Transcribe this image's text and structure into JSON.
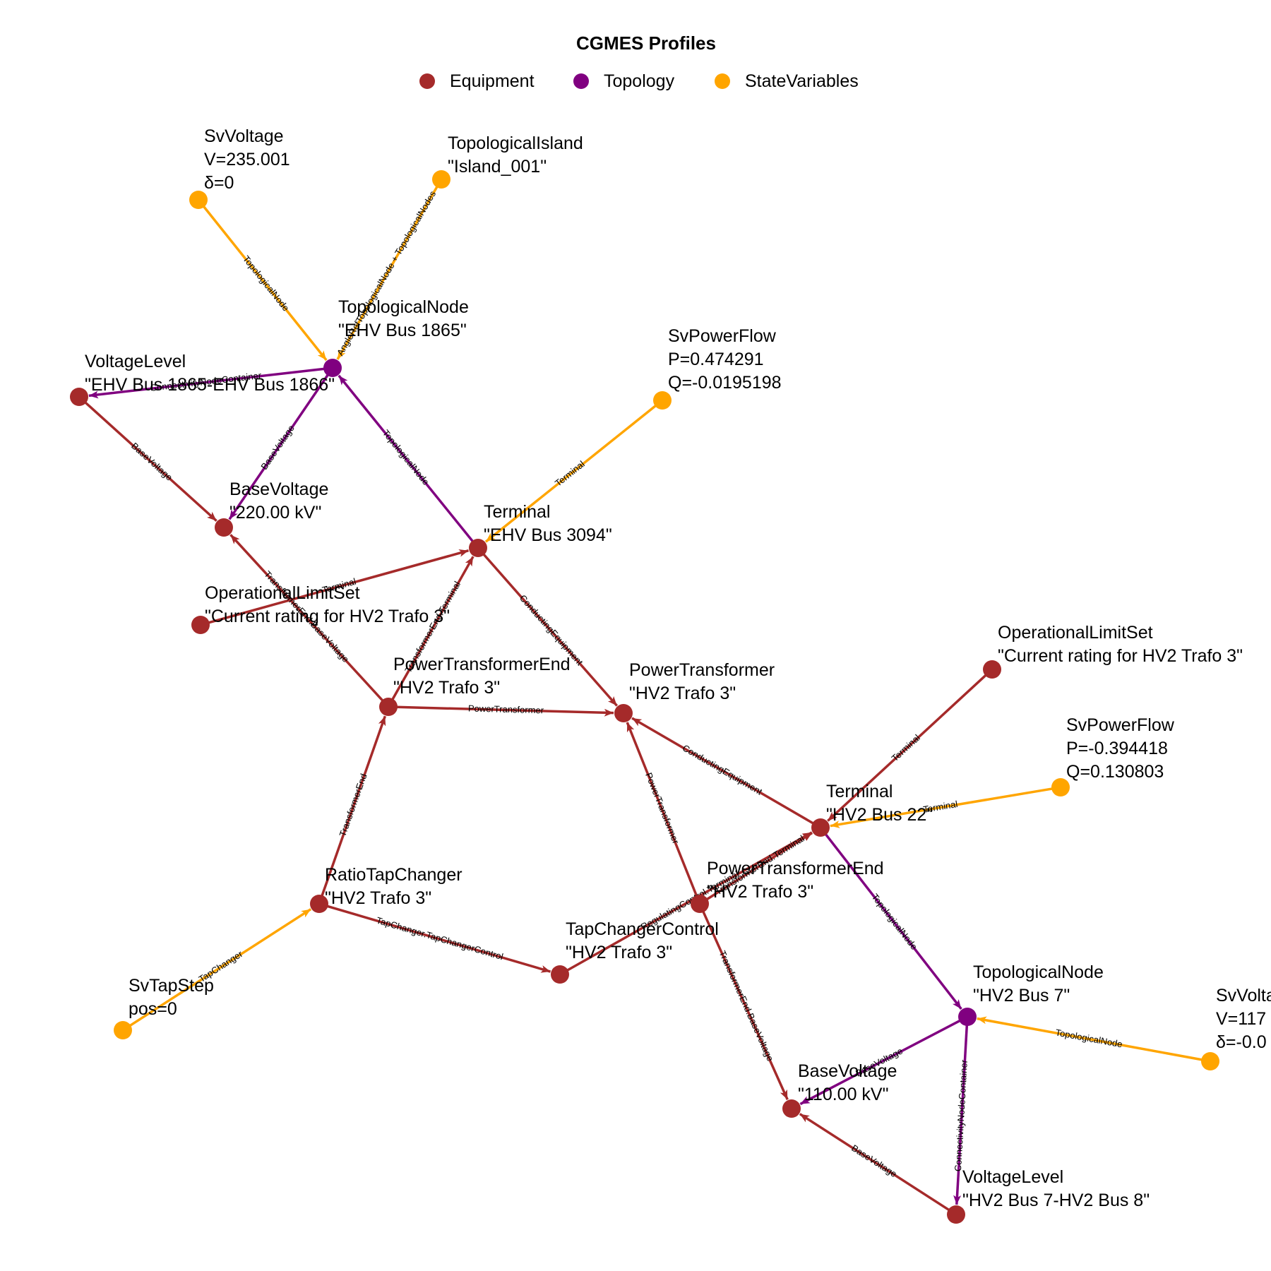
{
  "legend": {
    "title": "CGMES Profiles",
    "items": [
      {
        "label": "Equipment",
        "color": "#A52A2A"
      },
      {
        "label": "Topology",
        "color": "#800080"
      },
      {
        "label": "StateVariables",
        "color": "#FFA500"
      }
    ]
  },
  "nodes": [
    {
      "id": "svv1",
      "profile": "StateVariables",
      "lines": [
        "SvVoltage",
        "V=235.001",
        "δ=0"
      ]
    },
    {
      "id": "island",
      "profile": "StateVariables",
      "lines": [
        "TopologicalIsland",
        "\"Island_001\""
      ]
    },
    {
      "id": "tn1",
      "profile": "Topology",
      "lines": [
        "TopologicalNode",
        "\"EHV Bus 1865\""
      ]
    },
    {
      "id": "vl1",
      "profile": "Equipment",
      "lines": [
        "VoltageLevel",
        "\"EHV Bus 1865-EHV Bus 1866\""
      ]
    },
    {
      "id": "bv220",
      "profile": "Equipment",
      "lines": [
        "BaseVoltage",
        "\"220.00 kV\""
      ]
    },
    {
      "id": "svpf1",
      "profile": "StateVariables",
      "lines": [
        "SvPowerFlow",
        "P=0.474291",
        "Q=-0.0195198"
      ]
    },
    {
      "id": "term1",
      "profile": "Equipment",
      "lines": [
        "Terminal",
        "\"EHV Bus 3094\""
      ]
    },
    {
      "id": "ols1",
      "profile": "Equipment",
      "lines": [
        "OperationalLimitSet",
        "\"Current rating for HV2 Trafo 3\""
      ]
    },
    {
      "id": "pte1",
      "profile": "Equipment",
      "lines": [
        "PowerTransformerEnd",
        "\"HV2 Trafo 3\""
      ]
    },
    {
      "id": "pt",
      "profile": "Equipment",
      "lines": [
        "PowerTransformer",
        "\"HV2 Trafo 3\""
      ]
    },
    {
      "id": "ols2",
      "profile": "Equipment",
      "lines": [
        "OperationalLimitSet",
        "\"Current rating for HV2 Trafo 3\""
      ]
    },
    {
      "id": "svpf2",
      "profile": "StateVariables",
      "lines": [
        "SvPowerFlow",
        "P=-0.394418",
        "Q=0.130803"
      ]
    },
    {
      "id": "term2",
      "profile": "Equipment",
      "lines": [
        "Terminal",
        "\"HV2 Bus 22\""
      ]
    },
    {
      "id": "rtc",
      "profile": "Equipment",
      "lines": [
        "RatioTapChanger",
        "\"HV2 Trafo 3\""
      ]
    },
    {
      "id": "pte2",
      "profile": "Equipment",
      "lines": [
        "PowerTransformerEnd",
        "\"HV2 Trafo 3\""
      ]
    },
    {
      "id": "tcc",
      "profile": "Equipment",
      "lines": [
        "TapChangerControl",
        "\"HV2 Trafo 3\""
      ]
    },
    {
      "id": "svts",
      "profile": "StateVariables",
      "lines": [
        "SvTapStep",
        "pos=0"
      ]
    },
    {
      "id": "tn2",
      "profile": "Topology",
      "lines": [
        "TopologicalNode",
        "\"HV2 Bus 7\""
      ]
    },
    {
      "id": "svv2",
      "profile": "StateVariables",
      "lines": [
        "SvVoltage",
        "V=117",
        "δ=-0.0"
      ]
    },
    {
      "id": "bv110",
      "profile": "Equipment",
      "lines": [
        "BaseVoltage",
        "\"110.00 kV\""
      ]
    },
    {
      "id": "vl2",
      "profile": "Equipment",
      "lines": [
        "VoltageLevel",
        "\"HV2 Bus 7-HV2 Bus 8\""
      ]
    }
  ],
  "edges": [
    {
      "from": "svv1",
      "to": "tn1",
      "label": "TopologicalNode",
      "profile": "StateVariables"
    },
    {
      "from": "island",
      "to": "tn1",
      "label": "AngleRefTopologicalNode + TopologicalNodes",
      "profile": "StateVariables"
    },
    {
      "from": "tn1",
      "to": "vl1",
      "label": "ConnectivityNodeContainer",
      "profile": "Topology"
    },
    {
      "from": "tn1",
      "to": "bv220",
      "label": "BaseVoltage",
      "profile": "Topology"
    },
    {
      "from": "vl1",
      "to": "bv220",
      "label": "BaseVoltage",
      "profile": "Equipment"
    },
    {
      "from": "term1",
      "to": "tn1",
      "label": "TopologicalNode",
      "profile": "Topology"
    },
    {
      "from": "svpf1",
      "to": "term1",
      "label": "Terminal",
      "profile": "StateVariables"
    },
    {
      "from": "ols1",
      "to": "term1",
      "label": "Terminal",
      "profile": "Equipment"
    },
    {
      "from": "term1",
      "to": "pt",
      "label": "ConductingEquipment",
      "profile": "Equipment"
    },
    {
      "from": "pte1",
      "to": "term1",
      "label": "TransformerEnd.Terminal",
      "profile": "Equipment"
    },
    {
      "from": "pte1",
      "to": "bv220",
      "label": "TransformerEnd.BaseVoltage",
      "profile": "Equipment"
    },
    {
      "from": "pte1",
      "to": "pt",
      "label": "PowerTransformer",
      "profile": "Equipment"
    },
    {
      "from": "rtc",
      "to": "pte1",
      "label": "TransformerEnd",
      "profile": "Equipment"
    },
    {
      "from": "rtc",
      "to": "tcc",
      "label": "TapChanger.TapChangerControl",
      "profile": "Equipment"
    },
    {
      "from": "svts",
      "to": "rtc",
      "label": "TapChanger",
      "profile": "StateVariables"
    },
    {
      "from": "tcc",
      "to": "term2",
      "label": "RegulatingControl.Terminal",
      "profile": "Equipment"
    },
    {
      "from": "pte2",
      "to": "term2",
      "label": "TransformerEnd.Terminal",
      "profile": "Equipment"
    },
    {
      "from": "pte2",
      "to": "pt",
      "label": "PowerTransformer",
      "profile": "Equipment"
    },
    {
      "from": "pte2",
      "to": "bv110",
      "label": "TransformerEnd.BaseVoltage",
      "profile": "Equipment"
    },
    {
      "from": "term2",
      "to": "pt",
      "label": "ConductingEquipment",
      "profile": "Equipment"
    },
    {
      "from": "ols2",
      "to": "term2",
      "label": "Terminal",
      "profile": "Equipment"
    },
    {
      "from": "svpf2",
      "to": "term2",
      "label": "Terminal",
      "profile": "StateVariables"
    },
    {
      "from": "term2",
      "to": "tn2",
      "label": "TopologicalNode",
      "profile": "Topology"
    },
    {
      "from": "svv2",
      "to": "tn2",
      "label": "TopologicalNode",
      "profile": "StateVariables"
    },
    {
      "from": "tn2",
      "to": "bv110",
      "label": "BaseVoltage",
      "profile": "Topology"
    },
    {
      "from": "tn2",
      "to": "vl2",
      "label": "ConnectivityNodeContainer",
      "profile": "Topology"
    },
    {
      "from": "vl2",
      "to": "bv110",
      "label": "BaseVoltage",
      "profile": "Equipment"
    }
  ]
}
